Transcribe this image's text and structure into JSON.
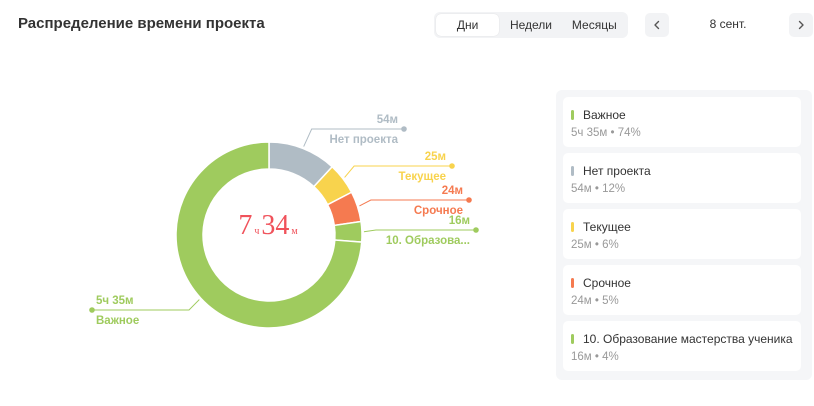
{
  "header": {
    "title": "Распределение времени проекта",
    "tabs": [
      {
        "label": "Дни",
        "active": true
      },
      {
        "label": "Недели",
        "active": false
      },
      {
        "label": "Месяцы",
        "active": false
      }
    ],
    "prev_icon": "chevron-left-icon",
    "next_icon": "chevron-right-icon",
    "date": "8 сент."
  },
  "center": {
    "hours": "7",
    "hours_unit": "ч",
    "minutes": "34",
    "minutes_unit": "м"
  },
  "chart_data": {
    "type": "pie",
    "subtype": "donut",
    "total_minutes": 454,
    "slices": [
      {
        "name": "Нет проекта",
        "short_label": "Нет проекта",
        "value_label": "54м",
        "minutes": 54,
        "percent_label": "12%",
        "color": "#b0bcc5"
      },
      {
        "name": "Текущее",
        "short_label": "Текущее",
        "value_label": "25м",
        "minutes": 25,
        "percent_label": "6%",
        "color": "#f8d34d"
      },
      {
        "name": "Срочное",
        "short_label": "Срочное",
        "value_label": "24м",
        "minutes": 24,
        "percent_label": "5%",
        "color": "#f57a50"
      },
      {
        "name": "10. Образование мастерства ученика",
        "short_label": "10. Образова...",
        "value_label": "16м",
        "minutes": 16,
        "percent_label": "4%",
        "color": "#9fcb5e"
      },
      {
        "name": "Важное",
        "short_label": "Важное",
        "value_label": "5ч 35м",
        "minutes": 335,
        "percent_label": "74%",
        "color": "#9fcb5e"
      }
    ]
  },
  "legend": [
    {
      "name": "Важное",
      "value": "5ч 35м • 74%",
      "color": "#9fcb5e"
    },
    {
      "name": "Нет проекта",
      "value": "54м • 12%",
      "color": "#b0bcc5"
    },
    {
      "name": "Текущее",
      "value": "25м • 6%",
      "color": "#f8d34d"
    },
    {
      "name": "Срочное",
      "value": "24м • 5%",
      "color": "#f57a50"
    },
    {
      "name": "10. Образование мастерства ученика",
      "value": "16м • 4%",
      "color": "#9fcb5e"
    }
  ]
}
